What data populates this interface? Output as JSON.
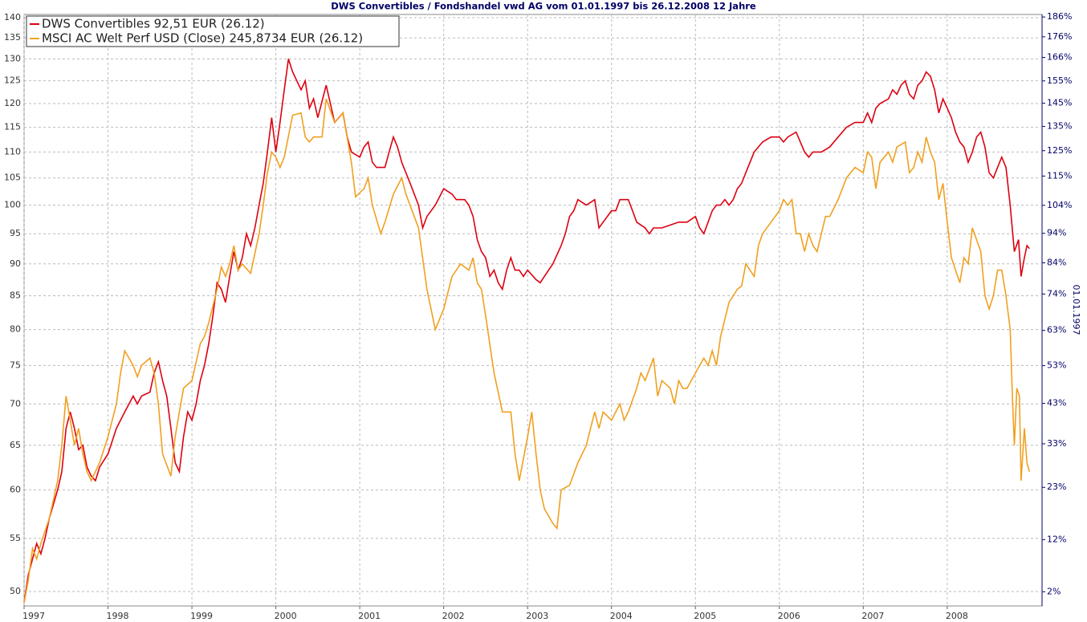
{
  "chart_data": {
    "type": "line",
    "title": "DWS Convertibles / Fondshandel vwd AG vom 01.01.1997 bis 26.12.2008 12 Jahre",
    "y2label": "01.01.1997",
    "xlim": [
      1997.0,
      2009.13
    ],
    "xticks": [
      1997,
      1998,
      1999,
      2000,
      2001,
      2002,
      2003,
      2004,
      2005,
      2006,
      2007,
      2008
    ],
    "ylim": [
      48.72,
      140.8
    ],
    "yscale": "log",
    "yticks": [
      50,
      55,
      60,
      65,
      70,
      75,
      80,
      85,
      90,
      95,
      100,
      105,
      110,
      115,
      120,
      125,
      130,
      135,
      140
    ],
    "y2lim": [
      -0.57,
      187.3
    ],
    "y2scale": "log",
    "y2ticks": [
      {
        "value": 2,
        "label": "2%"
      },
      {
        "value": 12,
        "label": "12%"
      },
      {
        "value": 23,
        "label": "23%"
      },
      {
        "value": 33,
        "label": "33%"
      },
      {
        "value": 43,
        "label": "43%"
      },
      {
        "value": 53,
        "label": "53%"
      },
      {
        "value": 63,
        "label": "63%"
      },
      {
        "value": 74,
        "label": "74%"
      },
      {
        "value": 84,
        "label": "84%"
      },
      {
        "value": 94,
        "label": "94%"
      },
      {
        "value": 104,
        "label": "104%"
      },
      {
        "value": 115,
        "label": "115%"
      },
      {
        "value": 125,
        "label": "125%"
      },
      {
        "value": 135,
        "label": "135%"
      },
      {
        "value": 145,
        "label": "145%"
      },
      {
        "value": 155,
        "label": "155%"
      },
      {
        "value": 166,
        "label": "166%"
      },
      {
        "value": 176,
        "label": "176%"
      },
      {
        "value": 186,
        "label": "186%"
      }
    ],
    "grid": true,
    "legend": "upper left",
    "series": [
      {
        "name": "DWS Convertibles 92,51 EUR (26.12)",
        "color": "#dd0010",
        "x": [
          1997.0,
          1997.05,
          1997.1,
          1997.15,
          1997.2,
          1997.25,
          1997.3,
          1997.4,
          1997.45,
          1997.5,
          1997.55,
          1997.6,
          1997.65,
          1997.7,
          1997.75,
          1997.8,
          1997.85,
          1997.9,
          1998.0,
          1998.1,
          1998.2,
          1998.3,
          1998.35,
          1998.4,
          1998.5,
          1998.55,
          1998.6,
          1998.65,
          1998.7,
          1998.75,
          1998.8,
          1998.85,
          1998.9,
          1998.95,
          1999.0,
          1999.05,
          1999.1,
          1999.15,
          1999.2,
          1999.25,
          1999.3,
          1999.35,
          1999.4,
          1999.45,
          1999.5,
          1999.55,
          1999.6,
          1999.65,
          1999.7,
          1999.75,
          1999.8,
          1999.85,
          1999.9,
          1999.95,
          2000.0,
          2000.05,
          2000.1,
          2000.15,
          2000.2,
          2000.3,
          2000.35,
          2000.4,
          2000.45,
          2000.5,
          2000.6,
          2000.65,
          2000.7,
          2000.8,
          2000.85,
          2000.9,
          2001.0,
          2001.05,
          2001.1,
          2001.15,
          2001.2,
          2001.3,
          2001.35,
          2001.4,
          2001.45,
          2001.5,
          2001.55,
          2001.6,
          2001.7,
          2001.75,
          2001.8,
          2001.9,
          2002.0,
          2002.1,
          2002.15,
          2002.25,
          2002.3,
          2002.35,
          2002.4,
          2002.45,
          2002.5,
          2002.55,
          2002.6,
          2002.65,
          2002.7,
          2002.75,
          2002.8,
          2002.85,
          2002.9,
          2002.95,
          2003.0,
          2003.1,
          2003.15,
          2003.2,
          2003.3,
          2003.4,
          2003.45,
          2003.5,
          2003.55,
          2003.6,
          2003.7,
          2003.8,
          2003.85,
          2003.9,
          2004.0,
          2004.05,
          2004.1,
          2004.2,
          2004.25,
          2004.3,
          2004.4,
          2004.45,
          2004.5,
          2004.6,
          2004.7,
          2004.8,
          2004.9,
          2005.0,
          2005.05,
          2005.1,
          2005.15,
          2005.2,
          2005.25,
          2005.3,
          2005.35,
          2005.4,
          2005.45,
          2005.5,
          2005.55,
          2005.6,
          2005.7,
          2005.8,
          2005.9,
          2006.0,
          2006.05,
          2006.1,
          2006.2,
          2006.25,
          2006.3,
          2006.35,
          2006.4,
          2006.45,
          2006.5,
          2006.6,
          2006.7,
          2006.8,
          2006.9,
          2007.0,
          2007.05,
          2007.1,
          2007.15,
          2007.2,
          2007.3,
          2007.35,
          2007.4,
          2007.45,
          2007.5,
          2007.55,
          2007.6,
          2007.65,
          2007.7,
          2007.75,
          2007.8,
          2007.85,
          2007.9,
          2007.95,
          2008.0,
          2008.05,
          2008.1,
          2008.15,
          2008.2,
          2008.25,
          2008.3,
          2008.35,
          2008.4,
          2008.45,
          2008.5,
          2008.55,
          2008.6,
          2008.65,
          2008.7,
          2008.75,
          2008.8,
          2008.85,
          2008.88,
          2008.92,
          2008.95,
          2008.98
        ],
        "values": [
          49,
          51.5,
          53,
          54.5,
          53.5,
          55,
          57,
          60,
          62,
          67,
          69,
          67,
          64.5,
          65,
          62.5,
          61.5,
          61,
          62.5,
          64,
          67,
          69,
          71,
          70,
          71,
          71.5,
          74,
          75.5,
          73,
          71,
          67,
          63,
          62,
          66,
          69,
          68,
          70,
          73,
          75,
          78,
          82,
          87,
          86,
          84,
          88,
          92,
          89,
          91,
          95,
          93,
          96,
          100,
          104,
          110,
          117,
          110,
          116,
          123,
          130,
          127,
          123,
          125,
          119,
          121,
          117,
          124,
          120,
          116,
          118,
          113,
          110,
          109,
          111,
          112,
          108,
          107,
          107,
          110,
          113,
          111,
          108,
          106,
          104,
          100,
          96,
          98,
          100,
          103,
          102,
          101,
          101,
          100,
          98,
          94,
          92,
          91,
          88,
          89,
          87,
          86,
          89,
          91,
          89,
          89,
          88,
          89,
          87.5,
          87,
          88,
          90,
          93,
          95,
          98,
          99,
          101,
          100,
          101,
          96,
          97,
          99,
          99,
          101,
          101,
          99,
          97,
          96,
          95,
          96,
          96,
          96.5,
          97,
          97,
          98,
          96,
          95,
          97,
          99,
          100,
          100,
          101,
          100,
          101,
          103,
          104,
          106,
          110,
          112,
          113,
          113,
          112,
          113,
          114,
          112,
          110,
          109,
          110,
          110,
          110,
          111,
          113,
          115,
          116,
          116,
          118,
          116,
          119,
          120,
          121,
          123,
          122,
          124,
          125,
          122,
          121,
          124,
          125,
          127,
          126,
          123,
          118,
          121,
          119,
          117,
          114,
          112,
          111,
          108,
          110,
          113,
          114,
          111,
          106,
          105,
          107,
          109,
          107,
          100,
          92,
          94,
          88,
          91,
          93,
          92.5
        ]
      },
      {
        "name": "MSCI AC Welt Perf USD (Close) 245,8734 EUR (26.12)",
        "color": "#f0a020",
        "x": [
          1997.0,
          1997.05,
          1997.1,
          1997.15,
          1997.2,
          1997.3,
          1997.4,
          1997.45,
          1997.5,
          1997.55,
          1997.6,
          1997.65,
          1997.7,
          1997.75,
          1997.8,
          1997.9,
          1998.0,
          1998.1,
          1998.15,
          1998.2,
          1998.3,
          1998.35,
          1998.4,
          1998.5,
          1998.55,
          1998.6,
          1998.65,
          1998.75,
          1998.8,
          1998.85,
          1998.9,
          1999.0,
          1999.1,
          1999.15,
          1999.2,
          1999.3,
          1999.35,
          1999.4,
          1999.45,
          1999.5,
          1999.55,
          1999.6,
          1999.7,
          1999.8,
          1999.85,
          1999.9,
          1999.95,
          2000.0,
          2000.05,
          2000.1,
          2000.2,
          2000.3,
          2000.35,
          2000.4,
          2000.45,
          2000.55,
          2000.6,
          2000.7,
          2000.8,
          2000.9,
          2000.95,
          2001.05,
          2001.1,
          2001.15,
          2001.25,
          2001.3,
          2001.4,
          2001.5,
          2001.55,
          2001.7,
          2001.8,
          2001.9,
          2002.0,
          2002.1,
          2002.2,
          2002.3,
          2002.35,
          2002.4,
          2002.45,
          2002.5,
          2002.6,
          2002.7,
          2002.8,
          2002.85,
          2002.9,
          2003.0,
          2003.05,
          2003.1,
          2003.15,
          2003.2,
          2003.3,
          2003.35,
          2003.4,
          2003.5,
          2003.6,
          2003.7,
          2003.75,
          2003.8,
          2003.85,
          2003.9,
          2004.0,
          2004.05,
          2004.1,
          2004.15,
          2004.2,
          2004.3,
          2004.35,
          2004.4,
          2004.5,
          2004.55,
          2004.6,
          2004.7,
          2004.75,
          2004.8,
          2004.85,
          2004.9,
          2005.0,
          2005.05,
          2005.1,
          2005.15,
          2005.2,
          2005.25,
          2005.3,
          2005.4,
          2005.45,
          2005.5,
          2005.55,
          2005.6,
          2005.65,
          2005.7,
          2005.75,
          2005.8,
          2005.9,
          2006.0,
          2006.05,
          2006.1,
          2006.15,
          2006.2,
          2006.25,
          2006.3,
          2006.35,
          2006.4,
          2006.45,
          2006.5,
          2006.55,
          2006.6,
          2006.7,
          2006.8,
          2006.9,
          2007.0,
          2007.05,
          2007.1,
          2007.15,
          2007.2,
          2007.3,
          2007.35,
          2007.4,
          2007.5,
          2007.55,
          2007.6,
          2007.65,
          2007.7,
          2007.75,
          2007.8,
          2007.85,
          2007.9,
          2007.95,
          2008.0,
          2008.05,
          2008.1,
          2008.15,
          2008.2,
          2008.25,
          2008.3,
          2008.35,
          2008.4,
          2008.45,
          2008.5,
          2008.55,
          2008.6,
          2008.65,
          2008.7,
          2008.75,
          2008.78,
          2008.8,
          2008.83,
          2008.86,
          2008.88,
          2008.92,
          2008.95,
          2008.98
        ],
        "values": [
          49,
          51,
          54,
          53,
          54.5,
          57,
          61,
          65,
          71,
          68,
          65,
          67,
          64,
          62,
          61,
          63,
          66,
          70,
          74,
          77,
          75,
          73.5,
          75,
          76,
          74,
          70,
          64,
          61.5,
          66,
          69,
          72,
          73,
          78,
          79,
          81,
          86,
          89.5,
          88,
          90,
          93,
          89,
          90,
          88.5,
          95,
          100,
          106,
          110,
          109,
          107,
          109,
          117.5,
          118,
          113,
          112,
          113,
          113,
          121,
          116,
          118,
          108,
          101.5,
          103,
          105,
          100,
          95,
          97,
          102,
          105,
          102,
          96,
          86,
          80,
          83,
          88,
          90,
          89,
          91,
          87,
          86,
          82,
          74,
          69,
          69,
          64,
          61,
          66,
          69,
          64,
          60,
          58,
          56.5,
          56,
          60,
          60.5,
          63,
          65,
          67,
          69,
          67,
          69,
          68,
          69,
          70,
          68,
          69,
          72,
          74,
          73,
          76,
          71,
          73,
          72,
          70,
          73,
          72,
          72,
          74,
          75,
          76,
          75,
          77,
          75,
          79,
          84,
          85,
          86,
          86.5,
          90,
          89,
          88,
          93,
          95,
          97,
          99,
          101,
          100,
          101,
          95,
          95,
          92,
          95,
          93,
          92,
          95,
          98,
          98,
          101,
          105,
          107,
          106,
          110,
          109,
          103,
          108,
          110,
          108,
          111,
          112,
          106,
          107,
          110,
          108,
          113,
          110,
          108,
          101,
          104,
          97,
          91,
          89,
          87,
          91,
          90,
          96,
          94,
          92,
          85,
          83,
          85,
          89,
          89,
          85,
          80,
          70,
          65,
          72,
          71,
          61,
          67,
          63,
          62
        ]
      }
    ]
  }
}
